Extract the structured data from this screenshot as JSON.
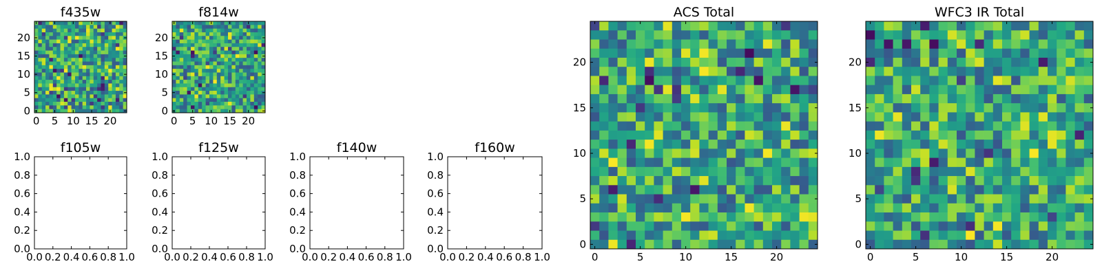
{
  "figure": {
    "cmap": "viridis",
    "colors": [
      "#440154",
      "#3b528b",
      "#21918c",
      "#5ec962",
      "#fde725"
    ],
    "background": "#ffffff"
  },
  "chart_data": [
    {
      "type": "heatmap",
      "title": "f435w",
      "image_size": 25,
      "xlim": [
        -0.5,
        24.5
      ],
      "ylim": [
        -0.5,
        24.5
      ],
      "xticks": [
        0,
        5,
        10,
        15,
        20
      ],
      "yticks": [
        0,
        5,
        10,
        15,
        20
      ],
      "xticklabels": [
        "0",
        "5",
        "10",
        "15",
        "20"
      ],
      "yticklabels": [
        "0",
        "5",
        "10",
        "15",
        "20"
      ],
      "note": "25x25 pixel image, values not labeled"
    },
    {
      "type": "heatmap",
      "title": "f814w",
      "image_size": 25,
      "xlim": [
        -0.5,
        24.5
      ],
      "ylim": [
        -0.5,
        24.5
      ],
      "xticks": [
        0,
        5,
        10,
        15,
        20
      ],
      "yticks": [
        0,
        5,
        10,
        15,
        20
      ],
      "xticklabels": [
        "0",
        "5",
        "10",
        "15",
        "20"
      ],
      "yticklabels": [
        "0",
        "5",
        "10",
        "15",
        "20"
      ],
      "note": "25x25 pixel image, values not labeled"
    },
    {
      "type": "empty",
      "title": "f105w",
      "xlim": [
        0,
        1
      ],
      "ylim": [
        0,
        1
      ],
      "xticks": [
        0,
        0.2,
        0.4,
        0.6,
        0.8,
        1.0
      ],
      "yticks": [
        0,
        0.2,
        0.4,
        0.6,
        0.8,
        1.0
      ],
      "xticklabels": [
        "0.0",
        "0.2",
        "0.4",
        "0.6",
        "0.8",
        "1.0"
      ],
      "yticklabels": [
        "0.0",
        "0.2",
        "0.4",
        "0.6",
        "0.8",
        "1.0"
      ]
    },
    {
      "type": "empty",
      "title": "f125w",
      "xlim": [
        0,
        1
      ],
      "ylim": [
        0,
        1
      ],
      "xticks": [
        0,
        0.2,
        0.4,
        0.6,
        0.8,
        1.0
      ],
      "yticks": [
        0,
        0.2,
        0.4,
        0.6,
        0.8,
        1.0
      ],
      "xticklabels": [
        "0.0",
        "0.2",
        "0.4",
        "0.6",
        "0.8",
        "1.0"
      ],
      "yticklabels": [
        "0.0",
        "0.2",
        "0.4",
        "0.6",
        "0.8",
        "1.0"
      ]
    },
    {
      "type": "empty",
      "title": "f140w",
      "xlim": [
        0,
        1
      ],
      "ylim": [
        0,
        1
      ],
      "xticks": [
        0,
        0.2,
        0.4,
        0.6,
        0.8,
        1.0
      ],
      "yticks": [
        0,
        0.2,
        0.4,
        0.6,
        0.8,
        1.0
      ],
      "xticklabels": [
        "0.0",
        "0.2",
        "0.4",
        "0.6",
        "0.8",
        "1.0"
      ],
      "yticklabels": [
        "0.0",
        "0.2",
        "0.4",
        "0.6",
        "0.8",
        "1.0"
      ]
    },
    {
      "type": "empty",
      "title": "f160w",
      "xlim": [
        0,
        1
      ],
      "ylim": [
        0,
        1
      ],
      "xticks": [
        0,
        0.2,
        0.4,
        0.6,
        0.8,
        1.0
      ],
      "yticks": [
        0,
        0.2,
        0.4,
        0.6,
        0.8,
        1.0
      ],
      "xticklabels": [
        "0.0",
        "0.2",
        "0.4",
        "0.6",
        "0.8",
        "1.0"
      ],
      "yticklabels": [
        "0.0",
        "0.2",
        "0.4",
        "0.6",
        "0.8",
        "1.0"
      ]
    },
    {
      "type": "heatmap",
      "title": "ACS Total",
      "image_size": 25,
      "xlim": [
        -0.5,
        24.5
      ],
      "ylim": [
        -0.5,
        24.5
      ],
      "xticks": [
        0,
        5,
        10,
        15,
        20
      ],
      "yticks": [
        0,
        5,
        10,
        15,
        20
      ],
      "xticklabels": [
        "0",
        "5",
        "10",
        "15",
        "20"
      ],
      "yticklabels": [
        "0",
        "5",
        "10",
        "15",
        "20"
      ],
      "note": "25x25 pixel image, values not labeled"
    },
    {
      "type": "heatmap",
      "title": "WFC3 IR Total",
      "image_size": 25,
      "xlim": [
        -0.5,
        24.5
      ],
      "ylim": [
        -0.5,
        24.5
      ],
      "xticks": [
        0,
        5,
        10,
        15,
        20
      ],
      "yticks": [
        0,
        5,
        10,
        15,
        20
      ],
      "xticklabels": [
        "0",
        "5",
        "10",
        "15",
        "20"
      ],
      "yticklabels": [
        "0",
        "5",
        "10",
        "15",
        "20"
      ],
      "note": "25x25 pixel image, values not labeled"
    }
  ]
}
